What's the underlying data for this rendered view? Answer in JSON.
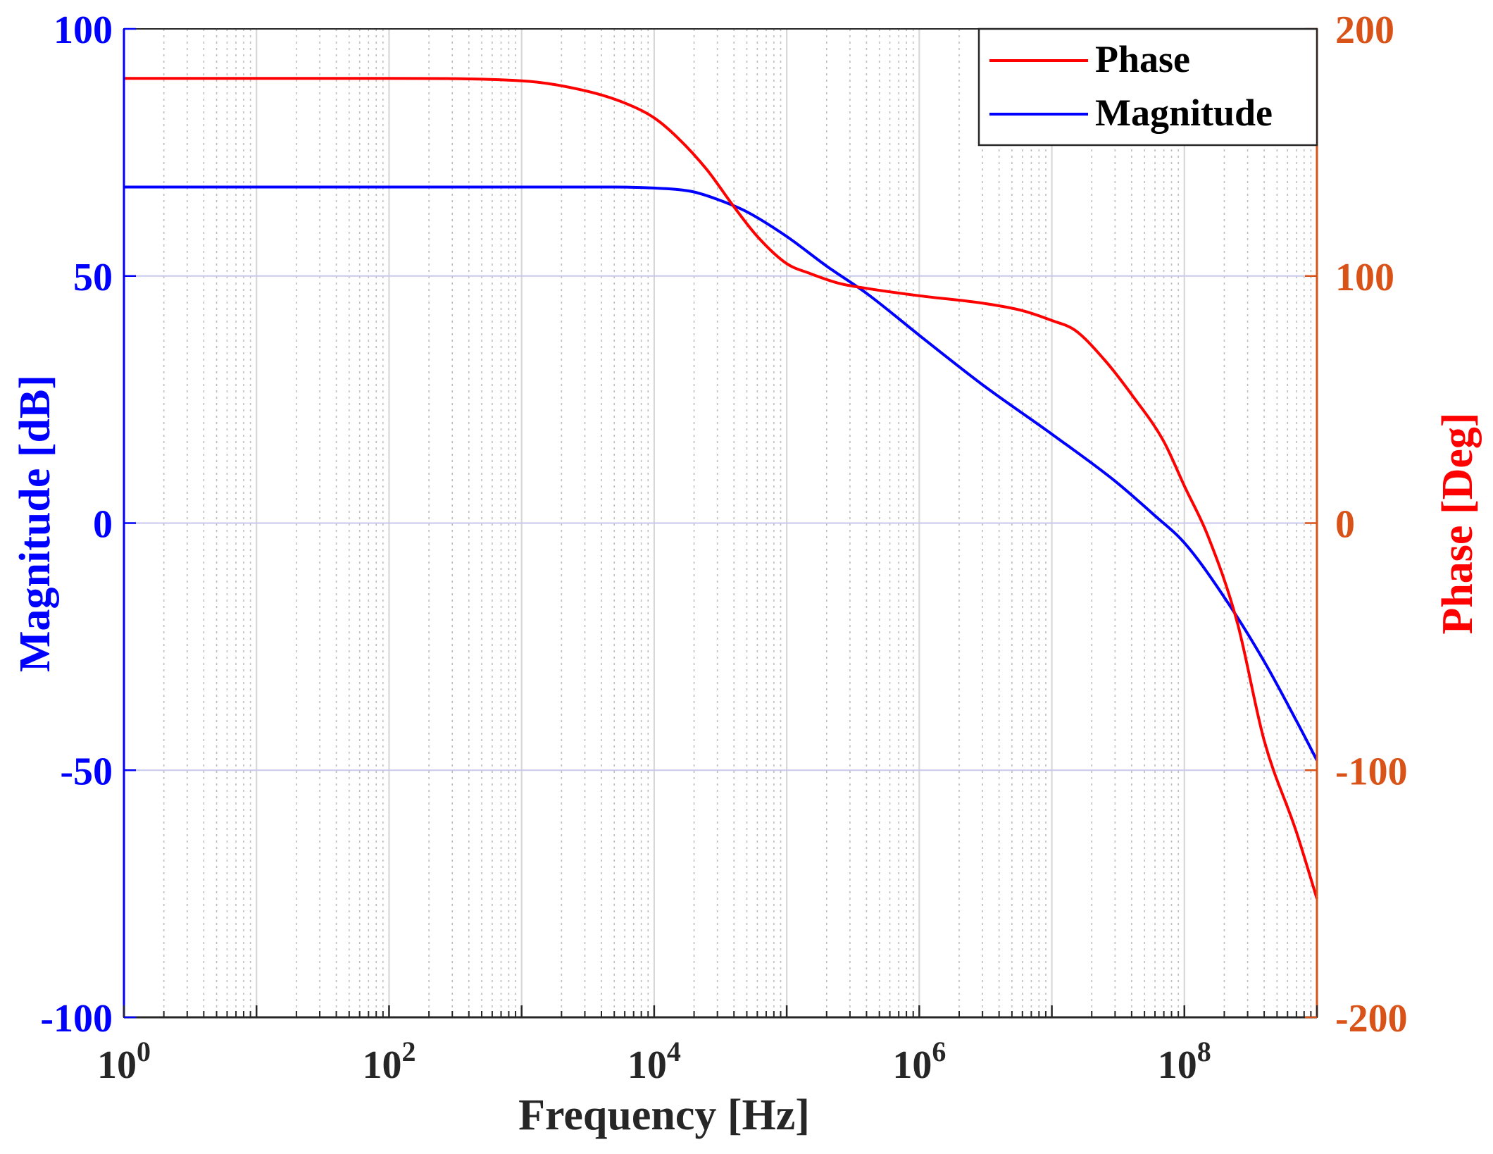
{
  "chart_data": {
    "type": "line",
    "title": "",
    "xlabel": "Frequency [Hz]",
    "ylabel_left": "Magnitude [dB]",
    "ylabel_right": "Phase [Deg]",
    "x_scale": "log",
    "xlim": [
      1,
      1000000000
    ],
    "ylim_left": [
      -100,
      100
    ],
    "ylim_right": [
      -200,
      200
    ],
    "x_ticks": [
      {
        "base": "10",
        "exp": "0",
        "value": 1
      },
      {
        "base": "10",
        "exp": "2",
        "value": 100
      },
      {
        "base": "10",
        "exp": "4",
        "value": 10000
      },
      {
        "base": "10",
        "exp": "6",
        "value": 1000000
      },
      {
        "base": "10",
        "exp": "8",
        "value": 100000000
      }
    ],
    "y_ticks_left": [
      "100",
      "50",
      "0",
      "-50",
      "-100"
    ],
    "y_ticks_right": [
      "200",
      "100",
      "0",
      "-100",
      "-200"
    ],
    "grid": true,
    "legend_position": "top-right",
    "colors": {
      "magnitude": "#0000ff",
      "phase": "#ff0000",
      "left_axis": "#0000ff",
      "right_axis": "#d95319",
      "grid_major": "#d8d8d8",
      "grid_minor": "#bdbdbd",
      "grid_y": "#c8c8ee"
    },
    "series": [
      {
        "name": "Phase",
        "axis": "right",
        "x": [
          1,
          10,
          100,
          1000,
          3000,
          6000,
          10000,
          15000,
          25000,
          40000,
          60000,
          100000,
          150000,
          250000,
          400000,
          1000000,
          3000000,
          6000000,
          10000000,
          15000000,
          25000000,
          40000000,
          70000000,
          100000000,
          150000000,
          250000000,
          400000000,
          700000000,
          1000000000
        ],
        "values": [
          180,
          180,
          180,
          179,
          175,
          170,
          164,
          156,
          143,
          128,
          116,
          105,
          101,
          97,
          95,
          92,
          89,
          86,
          82,
          78,
          66,
          52,
          33,
          15,
          -5,
          -40,
          -88,
          -125,
          -152
        ]
      },
      {
        "name": "Magnitude",
        "axis": "left",
        "x": [
          1,
          10,
          100,
          1000,
          5000,
          10000,
          15000,
          20000,
          30000,
          50000,
          100000,
          200000,
          400000,
          1000000,
          3000000,
          10000000,
          30000000,
          60000000,
          100000000,
          200000000,
          400000000,
          700000000,
          1000000000
        ],
        "values": [
          68,
          68,
          68,
          68,
          68,
          67.8,
          67.5,
          67,
          65.5,
          63,
          58,
          52,
          46.5,
          38,
          28,
          18,
          8.5,
          1.5,
          -4,
          -15,
          -28,
          -40,
          -48
        ]
      }
    ]
  }
}
